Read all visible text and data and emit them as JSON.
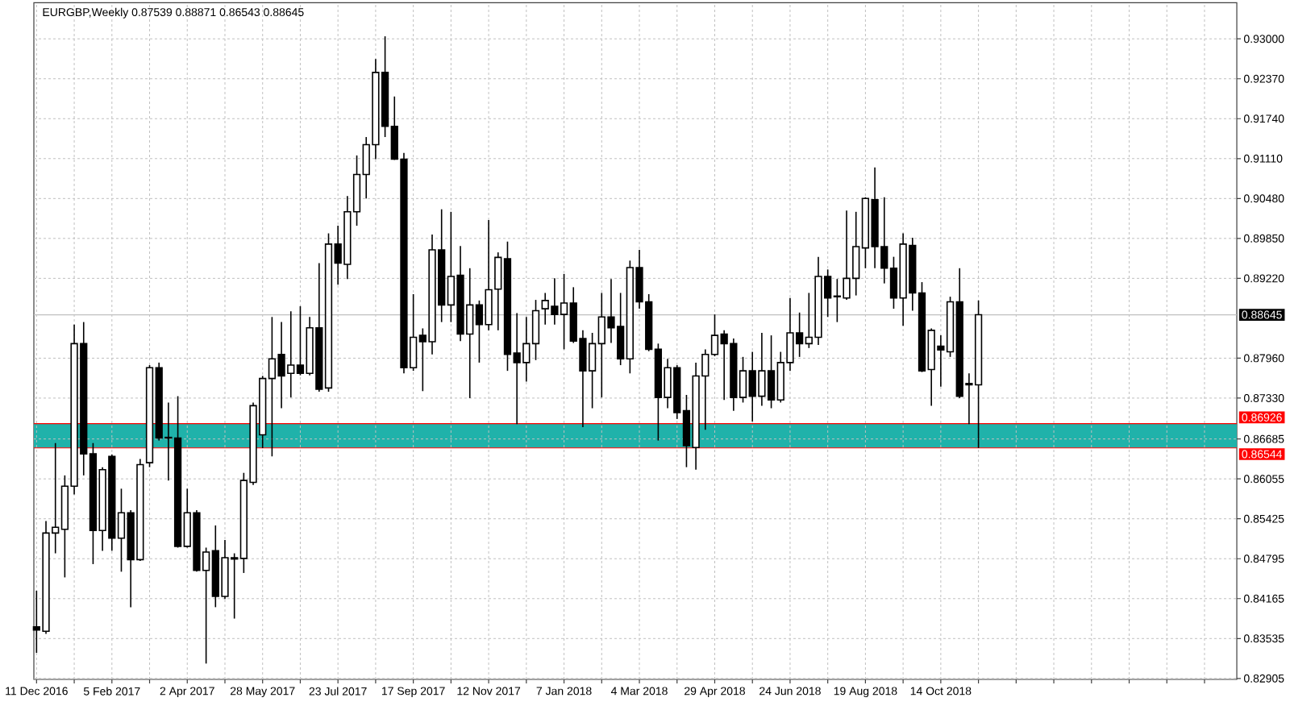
{
  "chart_data": {
    "type": "candlestick",
    "title": "EURGBP,Weekly 0.87539 0.88871 0.86543 0.88645",
    "color": "#000000",
    "x": [
      "2016-12-11",
      "2016-12-18",
      "2016-12-25",
      "2017-01-01",
      "2017-01-08",
      "2017-01-15",
      "2017-01-22",
      "2017-01-29",
      "2017-02-05",
      "2017-02-12",
      "2017-02-19",
      "2017-02-26",
      "2017-03-05",
      "2017-03-12",
      "2017-03-19",
      "2017-03-26",
      "2017-04-02",
      "2017-04-09",
      "2017-04-16",
      "2017-04-23",
      "2017-04-30",
      "2017-05-07",
      "2017-05-14",
      "2017-05-21",
      "2017-05-28",
      "2017-06-04",
      "2017-06-11",
      "2017-06-18",
      "2017-06-25",
      "2017-07-02",
      "2017-07-09",
      "2017-07-16",
      "2017-07-23",
      "2017-07-30",
      "2017-08-06",
      "2017-08-13",
      "2017-08-20",
      "2017-08-27",
      "2017-09-03",
      "2017-09-10",
      "2017-09-17",
      "2017-09-24",
      "2017-10-01",
      "2017-10-08",
      "2017-10-15",
      "2017-10-22",
      "2017-10-29",
      "2017-11-05",
      "2017-11-12",
      "2017-11-19",
      "2017-11-26",
      "2017-12-03",
      "2017-12-10",
      "2017-12-17",
      "2017-12-24",
      "2017-12-31",
      "2018-01-07",
      "2018-01-14",
      "2018-01-21",
      "2018-01-28",
      "2018-02-04",
      "2018-02-11",
      "2018-02-18",
      "2018-02-25",
      "2018-03-04",
      "2018-03-11",
      "2018-03-18",
      "2018-03-25",
      "2018-04-01",
      "2018-04-08",
      "2018-04-15",
      "2018-04-22",
      "2018-04-29",
      "2018-05-06",
      "2018-05-13",
      "2018-05-20",
      "2018-05-27",
      "2018-06-03",
      "2018-06-10",
      "2018-06-17",
      "2018-06-24",
      "2018-07-01",
      "2018-07-08",
      "2018-07-15",
      "2018-07-22",
      "2018-07-29",
      "2018-08-05",
      "2018-08-12",
      "2018-08-19",
      "2018-08-26",
      "2018-09-02",
      "2018-09-09",
      "2018-09-16",
      "2018-09-23",
      "2018-09-30",
      "2018-10-07",
      "2018-10-14",
      "2018-10-21",
      "2018-10-28",
      "2018-11-04",
      "2018-11-11"
    ],
    "ohlc": [
      [
        0.8372,
        0.8429,
        0.8331,
        0.8367
      ],
      [
        0.8365,
        0.8539,
        0.8361,
        0.852
      ],
      [
        0.852,
        0.8662,
        0.8488,
        0.8529
      ],
      [
        0.8526,
        0.8611,
        0.845,
        0.8594
      ],
      [
        0.8594,
        0.8849,
        0.8581,
        0.8819
      ],
      [
        0.8819,
        0.8853,
        0.8611,
        0.8645
      ],
      [
        0.8645,
        0.8662,
        0.8471,
        0.8524
      ],
      [
        0.8524,
        0.8624,
        0.8492,
        0.862
      ],
      [
        0.8641,
        0.8644,
        0.8492,
        0.8512
      ],
      [
        0.8512,
        0.859,
        0.8459,
        0.8552
      ],
      [
        0.8552,
        0.8556,
        0.8403,
        0.8478
      ],
      [
        0.8478,
        0.8637,
        0.8476,
        0.8628
      ],
      [
        0.8631,
        0.8785,
        0.8624,
        0.8781
      ],
      [
        0.8781,
        0.8789,
        0.8666,
        0.867
      ],
      [
        0.8671,
        0.8726,
        0.8603,
        0.867
      ],
      [
        0.867,
        0.8736,
        0.8497,
        0.8499
      ],
      [
        0.8499,
        0.859,
        0.8497,
        0.8552
      ],
      [
        0.8552,
        0.8556,
        0.8459,
        0.8461
      ],
      [
        0.8461,
        0.8497,
        0.8314,
        0.849
      ],
      [
        0.8492,
        0.8532,
        0.8403,
        0.842
      ],
      [
        0.842,
        0.8509,
        0.8416,
        0.8481
      ],
      [
        0.8481,
        0.8488,
        0.8385,
        0.8479
      ],
      [
        0.848,
        0.8615,
        0.8457,
        0.8603
      ],
      [
        0.86,
        0.8726,
        0.8596,
        0.8721
      ],
      [
        0.8675,
        0.8768,
        0.8654,
        0.8764
      ],
      [
        0.8764,
        0.8861,
        0.8641,
        0.8795
      ],
      [
        0.8802,
        0.8853,
        0.8717,
        0.8768
      ],
      [
        0.8772,
        0.887,
        0.8734,
        0.8785
      ],
      [
        0.8785,
        0.8878,
        0.8769,
        0.8772
      ],
      [
        0.8772,
        0.8861,
        0.8769,
        0.8844
      ],
      [
        0.8844,
        0.8946,
        0.8743,
        0.8747
      ],
      [
        0.8749,
        0.8993,
        0.8743,
        0.8976
      ],
      [
        0.8976,
        0.9005,
        0.8912,
        0.8946
      ],
      [
        0.8944,
        0.9052,
        0.8921,
        0.9027
      ],
      [
        0.9027,
        0.9116,
        0.9005,
        0.9086
      ],
      [
        0.9086,
        0.9145,
        0.9048,
        0.9133
      ],
      [
        0.9133,
        0.9268,
        0.911,
        0.9247
      ],
      [
        0.9247,
        0.9304,
        0.9145,
        0.9162
      ],
      [
        0.9162,
        0.9209,
        0.9109,
        0.911
      ],
      [
        0.911,
        0.912,
        0.8772,
        0.8781
      ],
      [
        0.8781,
        0.8897,
        0.8776,
        0.8829
      ],
      [
        0.8832,
        0.8843,
        0.8744,
        0.8822
      ],
      [
        0.8822,
        0.8991,
        0.8802,
        0.8967
      ],
      [
        0.8967,
        0.9031,
        0.8853,
        0.888
      ],
      [
        0.888,
        0.9027,
        0.8853,
        0.8925
      ],
      [
        0.8927,
        0.8973,
        0.8823,
        0.8834
      ],
      [
        0.8834,
        0.8938,
        0.8733,
        0.888
      ],
      [
        0.888,
        0.8887,
        0.8789,
        0.8849
      ],
      [
        0.8849,
        0.9014,
        0.884,
        0.8904
      ],
      [
        0.8905,
        0.8963,
        0.884,
        0.8955
      ],
      [
        0.8953,
        0.898,
        0.8776,
        0.8802
      ],
      [
        0.8804,
        0.8867,
        0.8692,
        0.8789
      ],
      [
        0.8789,
        0.8861,
        0.8759,
        0.8819
      ],
      [
        0.8819,
        0.8888,
        0.8793,
        0.8871
      ],
      [
        0.8874,
        0.8899,
        0.8849,
        0.8887
      ],
      [
        0.8878,
        0.8922,
        0.8849,
        0.8865
      ],
      [
        0.8865,
        0.8929,
        0.881,
        0.8883
      ],
      [
        0.8883,
        0.8908,
        0.882,
        0.8823
      ],
      [
        0.8827,
        0.884,
        0.8687,
        0.8776
      ],
      [
        0.8776,
        0.8836,
        0.8717,
        0.8819
      ],
      [
        0.8819,
        0.8899,
        0.8734,
        0.8861
      ],
      [
        0.8861,
        0.8921,
        0.882,
        0.8844
      ],
      [
        0.8846,
        0.8899,
        0.8785,
        0.8795
      ],
      [
        0.8795,
        0.895,
        0.8772,
        0.8939
      ],
      [
        0.8939,
        0.8967,
        0.8874,
        0.8885
      ],
      [
        0.8885,
        0.8897,
        0.8807,
        0.881
      ],
      [
        0.881,
        0.8819,
        0.8666,
        0.8734
      ],
      [
        0.8734,
        0.8795,
        0.8717,
        0.8781
      ],
      [
        0.8781,
        0.8785,
        0.87,
        0.871
      ],
      [
        0.8713,
        0.8738,
        0.8624,
        0.8658
      ],
      [
        0.8655,
        0.8789,
        0.862,
        0.8768
      ],
      [
        0.8768,
        0.881,
        0.8683,
        0.8802
      ],
      [
        0.8802,
        0.8865,
        0.8799,
        0.8832
      ],
      [
        0.8834,
        0.884,
        0.873,
        0.8819
      ],
      [
        0.8819,
        0.8827,
        0.8713,
        0.8734
      ],
      [
        0.8734,
        0.8798,
        0.8726,
        0.8776
      ],
      [
        0.8776,
        0.8806,
        0.8696,
        0.8736
      ],
      [
        0.8736,
        0.8836,
        0.8721,
        0.8776
      ],
      [
        0.8776,
        0.8832,
        0.8717,
        0.873
      ],
      [
        0.873,
        0.8806,
        0.8726,
        0.8789
      ],
      [
        0.8789,
        0.8891,
        0.8776,
        0.8836
      ],
      [
        0.8836,
        0.8868,
        0.8798,
        0.8819
      ],
      [
        0.8819,
        0.8899,
        0.8812,
        0.8829
      ],
      [
        0.8829,
        0.8956,
        0.8817,
        0.8925
      ],
      [
        0.8925,
        0.8936,
        0.8861,
        0.8891
      ],
      [
        0.8893,
        0.8921,
        0.8853,
        0.8894
      ],
      [
        0.8891,
        0.9029,
        0.8888,
        0.8922
      ],
      [
        0.8922,
        0.9027,
        0.8895,
        0.8972
      ],
      [
        0.897,
        0.905,
        0.8938,
        0.9048
      ],
      [
        0.9046,
        0.9097,
        0.8938,
        0.8972
      ],
      [
        0.8972,
        0.905,
        0.8914,
        0.8938
      ],
      [
        0.8938,
        0.8956,
        0.8874,
        0.8891
      ],
      [
        0.8891,
        0.8993,
        0.8847,
        0.8976
      ],
      [
        0.8974,
        0.8986,
        0.8871,
        0.8899
      ],
      [
        0.8899,
        0.8916,
        0.8774,
        0.8776
      ],
      [
        0.8778,
        0.8843,
        0.8721,
        0.884
      ],
      [
        0.8815,
        0.8832,
        0.8751,
        0.8809
      ],
      [
        0.8806,
        0.8893,
        0.8798,
        0.8885
      ],
      [
        0.8885,
        0.8938,
        0.8733,
        0.8736
      ],
      [
        0.8756,
        0.8772,
        0.8692,
        0.8754
      ],
      [
        0.87539,
        0.88871,
        0.86543,
        0.88645
      ]
    ],
    "xlim": [
      "2016-12-09",
      "2019-05-22"
    ],
    "xticks": [
      {
        "value": "2016-12-11",
        "label": "11 Dec 2016"
      },
      {
        "value": "2017-01-08",
        "label": null
      },
      {
        "value": "2017-02-05",
        "label": "5 Feb 2017"
      },
      {
        "value": "2017-03-05",
        "label": null
      },
      {
        "value": "2017-04-02",
        "label": "2 Apr 2017"
      },
      {
        "value": "2017-04-30",
        "label": null
      },
      {
        "value": "2017-05-28",
        "label": "28 May 2017"
      },
      {
        "value": "2017-06-25",
        "label": null
      },
      {
        "value": "2017-07-23",
        "label": "23 Jul 2017"
      },
      {
        "value": "2017-08-20",
        "label": null
      },
      {
        "value": "2017-09-17",
        "label": "17 Sep 2017"
      },
      {
        "value": "2017-10-15",
        "label": null
      },
      {
        "value": "2017-11-12",
        "label": "12 Nov 2017"
      },
      {
        "value": "2017-12-10",
        "label": null
      },
      {
        "value": "2018-01-07",
        "label": "7 Jan 2018"
      },
      {
        "value": "2018-02-04",
        "label": null
      },
      {
        "value": "2018-03-04",
        "label": "4 Mar 2018"
      },
      {
        "value": "2018-04-01",
        "label": null
      },
      {
        "value": "2018-04-29",
        "label": "29 Apr 2018"
      },
      {
        "value": "2018-05-27",
        "label": null
      },
      {
        "value": "2018-06-24",
        "label": "24 Jun 2018"
      },
      {
        "value": "2018-07-22",
        "label": null
      },
      {
        "value": "2018-08-19",
        "label": "19 Aug 2018"
      },
      {
        "value": "2018-09-16",
        "label": null
      },
      {
        "value": "2018-10-14",
        "label": "14 Oct 2018"
      },
      {
        "value": "2018-11-11",
        "label": null
      },
      {
        "value": "2018-12-09",
        "label": null
      },
      {
        "value": "2019-01-06",
        "label": null
      },
      {
        "value": "2019-02-03",
        "label": null
      },
      {
        "value": "2019-03-03",
        "label": null
      },
      {
        "value": "2019-03-31",
        "label": null
      },
      {
        "value": "2019-04-28",
        "label": null
      }
    ],
    "ylim": [
      0.8289,
      0.9357
    ],
    "yticks": [
      {
        "value": 0.93,
        "label": "0.93000"
      },
      {
        "value": 0.9237,
        "label": "0.92370"
      },
      {
        "value": 0.9174,
        "label": "0.91740"
      },
      {
        "value": 0.9111,
        "label": "0.91110"
      },
      {
        "value": 0.9048,
        "label": "0.90480"
      },
      {
        "value": 0.8985,
        "label": "0.89850"
      },
      {
        "value": 0.8922,
        "label": "0.89220"
      },
      {
        "value": 0.8796,
        "label": "0.87960"
      },
      {
        "value": 0.8733,
        "label": "0.87330"
      },
      {
        "value": 0.86685,
        "label": "0.86685"
      },
      {
        "value": 0.86055,
        "label": "0.86055"
      },
      {
        "value": 0.85425,
        "label": "0.85425"
      },
      {
        "value": 0.84795,
        "label": "0.84795"
      },
      {
        "value": 0.84165,
        "label": "0.84165"
      },
      {
        "value": 0.83535,
        "label": "0.83535"
      },
      {
        "value": 0.82905,
        "label": "0.82905"
      }
    ],
    "grid": true,
    "bands": [
      {
        "axis": "y",
        "from": 0.86544,
        "to": 0.86926,
        "color": "#20b2aa"
      }
    ],
    "ref_lines": [
      {
        "axis": "y",
        "value": 0.88645,
        "label": "0.88645",
        "color": "#c0c0c0"
      },
      {
        "axis": "y",
        "value": 0.86926,
        "label": "0.86926",
        "color": "#ff0000"
      },
      {
        "axis": "y",
        "value": 0.86544,
        "label": "0.86544",
        "color": "#ff0000"
      }
    ]
  }
}
